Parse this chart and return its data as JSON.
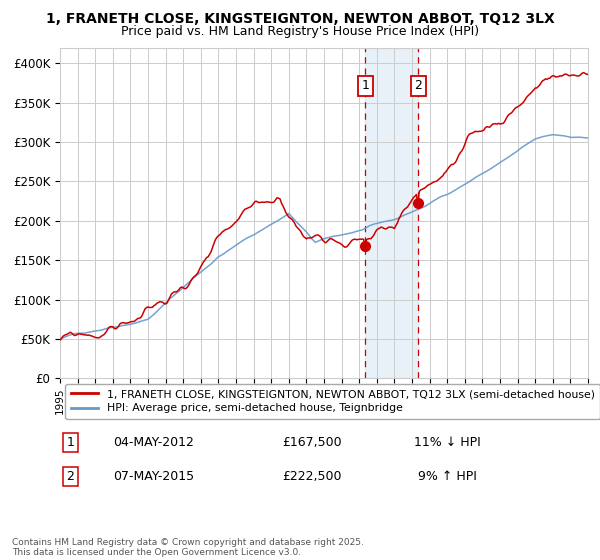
{
  "title_line1": "1, FRANETH CLOSE, KINGSTEIGNTON, NEWTON ABBOT, TQ12 3LX",
  "title_line2": "Price paid vs. HM Land Registry's House Price Index (HPI)",
  "ylim": [
    0,
    420000
  ],
  "yticks": [
    0,
    50000,
    100000,
    150000,
    200000,
    250000,
    300000,
    350000,
    400000
  ],
  "ytick_labels": [
    "£0",
    "£50K",
    "£100K",
    "£150K",
    "£200K",
    "£250K",
    "£300K",
    "£350K",
    "£400K"
  ],
  "x_start_year": 1995,
  "x_end_year": 2025,
  "sale1_date": "04-MAY-2012",
  "sale1_price": 167500,
  "sale2_date": "07-MAY-2015",
  "sale2_price": 222500,
  "sale1_x": 2012.35,
  "sale2_x": 2015.35,
  "legend_line1": "1, FRANETH CLOSE, KINGSTEIGNTON, NEWTON ABBOT, TQ12 3LX (semi-detached house)",
  "legend_line2": "HPI: Average price, semi-detached house, Teignbridge",
  "footer": "Contains HM Land Registry data © Crown copyright and database right 2025.\nThis data is licensed under the Open Government Licence v3.0.",
  "line_color_red": "#cc0000",
  "line_color_blue": "#6699cc",
  "shading_color": "#cce0f0",
  "grid_color": "#cccccc",
  "bg_color": "#ffffff"
}
